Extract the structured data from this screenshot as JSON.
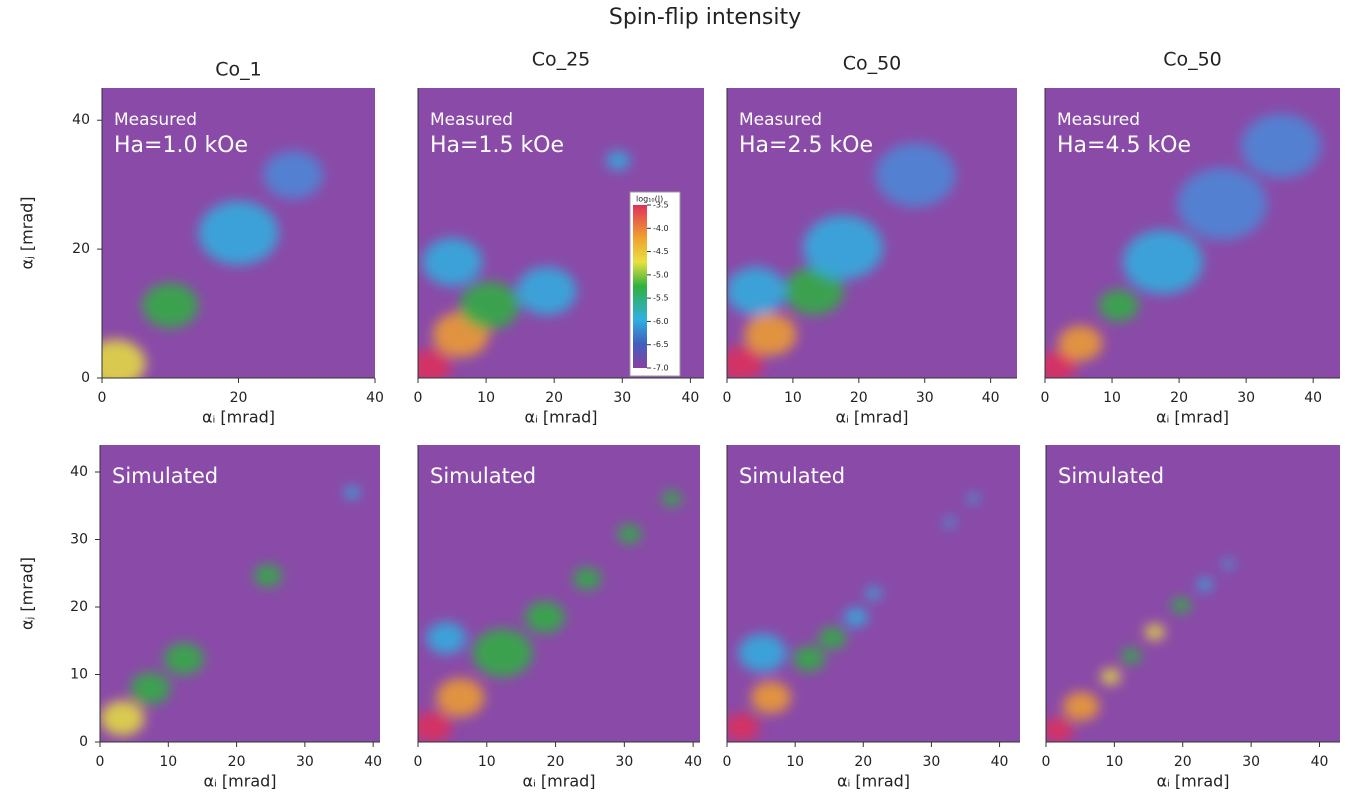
{
  "title": "Spin-flip intensity",
  "chart_data": [
    {
      "type": "heatmap",
      "title": "Co_1",
      "annotations": [
        "Measured",
        "Ha=1.0 kOe"
      ],
      "xlabel": "αᵢ [mrad]",
      "ylabel": "αⱼ [mrad]",
      "xlim": [
        0,
        40
      ],
      "xticks": [
        0,
        20,
        40
      ],
      "ylim": [
        0,
        45
      ],
      "yticks": [
        0,
        20,
        40
      ]
    },
    {
      "type": "heatmap",
      "title": "Co_25",
      "annotations": [
        "Measured",
        "Ha=1.5 kOe"
      ],
      "xlabel": "αᵢ [mrad]",
      "xlim": [
        0,
        42
      ],
      "xticks": [
        0,
        10,
        20,
        30,
        40
      ],
      "ylim": [
        0,
        45
      ],
      "colorbar": {
        "title": "log₁₀(I)",
        "lim": [
          -7,
          -3.5
        ],
        "ticks": [
          -3.5,
          {
            "value": -4,
            "label": "-4.0"
          },
          -4.5,
          {
            "value": -5,
            "label": "-5.0"
          },
          -5.5,
          {
            "value": -6,
            "label": "-6.0"
          },
          -6.5,
          {
            "value": -7,
            "label": "-7.0"
          }
        ]
      }
    },
    {
      "type": "heatmap",
      "title": "Co_50",
      "annotations": [
        "Measured",
        "Ha=2.5 kOe"
      ],
      "xlabel": "αᵢ [mrad]",
      "xlim": [
        0,
        44
      ],
      "xticks": [
        0,
        10,
        20,
        30,
        40
      ],
      "ylim": [
        0,
        45
      ]
    },
    {
      "type": "heatmap",
      "title": "Co_50",
      "annotations": [
        "Measured",
        "Ha=4.5 kOe"
      ],
      "xlabel": "αᵢ [mrad]",
      "xlim": [
        0,
        44
      ],
      "xticks": [
        0,
        10,
        20,
        30,
        40
      ],
      "ylim": [
        0,
        45
      ]
    },
    {
      "type": "heatmap",
      "annotations": [
        "Simulated"
      ],
      "xlabel": "αᵢ [mrad]",
      "ylabel": "αⱼ [mrad]",
      "xlim": [
        0,
        41
      ],
      "xticks": [
        0,
        10,
        20,
        30,
        40
      ],
      "ylim": [
        0,
        44
      ],
      "yticks": [
        0,
        10,
        20,
        30,
        40
      ]
    },
    {
      "type": "heatmap",
      "annotations": [
        "Simulated"
      ],
      "xlabel": "αᵢ [mrad]",
      "xlim": [
        0,
        41
      ],
      "xticks": [
        0,
        10,
        20,
        30,
        40
      ],
      "ylim": [
        0,
        44
      ]
    },
    {
      "type": "heatmap",
      "annotations": [
        "Simulated"
      ],
      "xlabel": "αᵢ [mrad]",
      "xlim": [
        0,
        43
      ],
      "xticks": [
        0,
        10,
        20,
        30,
        40
      ],
      "ylim": [
        0,
        44
      ]
    },
    {
      "type": "heatmap",
      "annotations": [
        "Simulated"
      ],
      "xlabel": "αᵢ [mrad]",
      "xlim": [
        0,
        43
      ],
      "xticks": [
        0,
        10,
        20,
        30,
        40
      ],
      "ylim": [
        0,
        44
      ]
    }
  ]
}
